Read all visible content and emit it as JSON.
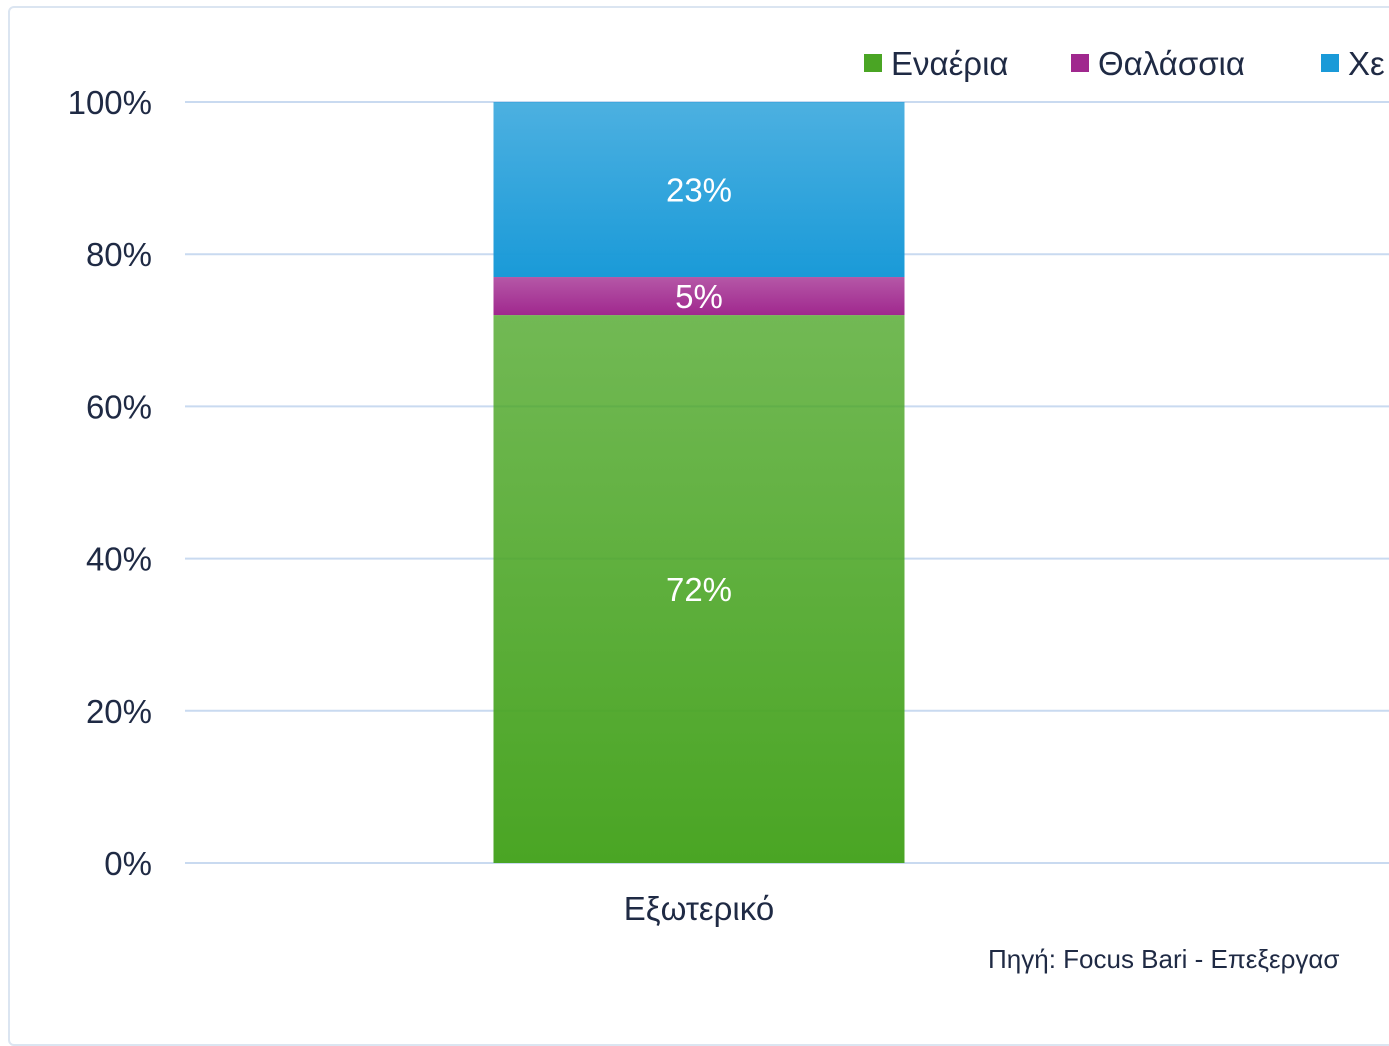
{
  "chart_data": {
    "type": "bar",
    "stacked": true,
    "categories": [
      "Εξωτερικό"
    ],
    "series": [
      {
        "name": "Εναέρια",
        "values": [
          72
        ],
        "label": "72%",
        "color": "#4aa524"
      },
      {
        "name": "Θαλάσσια",
        "values": [
          5
        ],
        "label": "5%",
        "color": "#a0288e"
      },
      {
        "name": "Χε",
        "values": [
          23
        ],
        "label": "23%",
        "color": "#1a9ad8"
      }
    ],
    "ylim": [
      0,
      100
    ],
    "y_ticks": [
      "0%",
      "20%",
      "40%",
      "60%",
      "80%",
      "100%"
    ],
    "grid": true,
    "legend_position": "top-right",
    "source_note": "Πηγή: Focus Bari - Επεξεργασ"
  }
}
